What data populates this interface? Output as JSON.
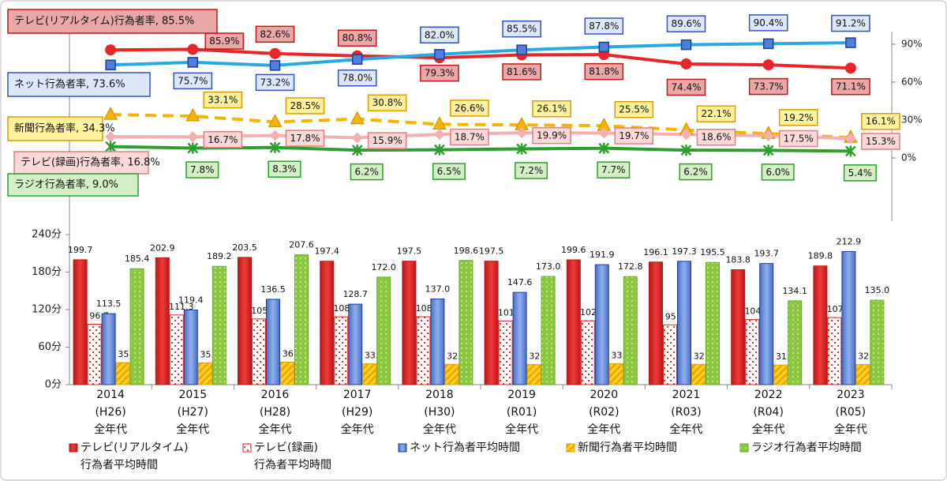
{
  "chart_data": [
    {
      "type": "line",
      "ylim": [
        -50,
        100
      ],
      "yticks": [
        {
          "value": 0,
          "label": "0%"
        },
        {
          "value": 30,
          "label": "30%"
        },
        {
          "value": 60,
          "label": "60%"
        },
        {
          "value": 90,
          "label": "90%"
        }
      ],
      "series": [
        {
          "name": "テレビ(リアルタイム)行為者率, 85.5%",
          "color": "#e8262a",
          "values": [
            85.5,
            85.9,
            82.6,
            80.8,
            79.3,
            81.6,
            81.8,
            74.4,
            73.7,
            71.1
          ],
          "value_labels": [
            null,
            "85.9%",
            "82.6%",
            "80.8%",
            "79.3%",
            "81.6%",
            "81.8%",
            "74.4%",
            "73.7%",
            "71.1%"
          ]
        },
        {
          "name": "ネット行為者率, 73.6%",
          "color": "#2aa8e0",
          "values": [
            73.6,
            75.7,
            73.2,
            78.0,
            82.0,
            85.5,
            87.8,
            89.6,
            90.4,
            91.2
          ],
          "value_labels": [
            null,
            "75.7%",
            "73.2%",
            "78.0%",
            "82.0%",
            "85.5%",
            "87.8%",
            "89.6%",
            "90.4%",
            "91.2%"
          ]
        },
        {
          "name": "新聞行為者率, 34.3%",
          "color": "#f5b400",
          "values": [
            34.3,
            33.1,
            28.5,
            30.8,
            26.6,
            26.1,
            25.5,
            22.1,
            19.2,
            16.1
          ],
          "value_labels": [
            null,
            "33.1%",
            "28.5%",
            "30.8%",
            "26.6%",
            "26.1%",
            "25.5%",
            "22.1%",
            "19.2%",
            "16.1%"
          ]
        },
        {
          "name": "テレビ(録画)行為者率, 16.8%",
          "color": "#f4b0b0",
          "values": [
            16.8,
            16.7,
            17.8,
            15.9,
            18.7,
            19.9,
            19.7,
            18.6,
            17.5,
            15.3
          ],
          "value_labels": [
            null,
            "16.7%",
            "17.8%",
            "15.9%",
            "18.7%",
            "19.9%",
            "19.7%",
            "18.6%",
            "17.5%",
            "15.3%"
          ]
        },
        {
          "name": "ラジオ行為者率, 9.0%",
          "color": "#2e9e2e",
          "values": [
            9.0,
            7.8,
            8.3,
            6.2,
            6.5,
            7.2,
            7.7,
            6.2,
            6.0,
            5.4
          ],
          "value_labels": [
            null,
            "7.8%",
            "8.3%",
            "6.2%",
            "6.5%",
            "7.2%",
            "7.7%",
            "6.2%",
            "6.0%",
            "5.4%"
          ]
        }
      ]
    },
    {
      "type": "bar",
      "ylim": [
        0,
        240
      ],
      "yticks": [
        {
          "value": 0,
          "label": "0分"
        },
        {
          "value": 60,
          "label": "60分"
        },
        {
          "value": 120,
          "label": "120分"
        },
        {
          "value": 180,
          "label": "180分"
        },
        {
          "value": 240,
          "label": "240分"
        }
      ],
      "categories": [
        "2014\n(H26)\n全年代",
        "2015\n(H27)\n全年代",
        "2016\n(H28)\n全年代",
        "2017\n(H29)\n全年代",
        "2018\n(H30)\n全年代",
        "2019\n(R01)\n全年代",
        "2020\n(R02)\n全年代",
        "2021\n(R03)\n全年代",
        "2022\n(R04)\n全年代",
        "2023\n(R05)\n全年代"
      ],
      "series": [
        {
          "name": "テレビ(リアルタイム)\n行為者平均時間",
          "color": "#e02020",
          "values": [
            199.7,
            202.9,
            203.5,
            197.4,
            197.5,
            197.5,
            199.6,
            196.1,
            183.8,
            189.8
          ]
        },
        {
          "name": "テレビ(録画)\n行為者平均時間",
          "color": "#ffffff",
          "values": [
            96.7,
            111.3,
            105.1,
            108.5,
            108.6,
            101.9,
            102.2,
            95.6,
            104.1,
            107.3
          ]
        },
        {
          "name": "ネット行為者平均時間",
          "color": "#6c8fd8",
          "values": [
            113.5,
            119.4,
            136.5,
            128.7,
            137.0,
            147.6,
            191.9,
            197.3,
            193.7,
            212.9
          ],
          "value_labels": [
            "113.5",
            "119.4",
            "136.5",
            "128.7",
            "137.0",
            "147.6",
            "191.9",
            "197.3",
            "193.7",
            "212.9"
          ]
        },
        {
          "name": "新聞行為者平均時間",
          "color": "#ffd42a",
          "values": [
            35.3,
            35.0,
            36.1,
            33.3,
            32.5,
            32.1,
            33.4,
            32.4,
            31.3,
            32.1
          ],
          "value_labels": [
            "35.3",
            "35.0",
            "36.1",
            "33.3",
            "32.5",
            "32.1",
            "33.4",
            "32.4",
            "31.3",
            "32.1"
          ]
        },
        {
          "name": "ラジオ行為者平均時間",
          "color": "#8dc63f",
          "values": [
            185.4,
            189.2,
            207.6,
            172.0,
            198.6,
            173.0,
            172.8,
            195.5,
            134.1,
            135.0
          ],
          "value_labels": [
            "185.4",
            "189.2",
            "207.6",
            "172.0",
            "198.6",
            "173.0",
            "172.8",
            "195.5",
            "134.1",
            "135.0"
          ]
        }
      ]
    }
  ]
}
